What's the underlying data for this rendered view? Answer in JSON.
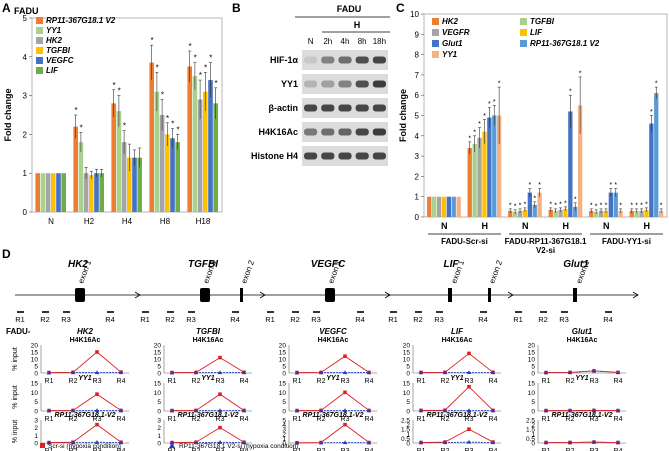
{
  "colors": {
    "orange": "#ED7D31",
    "green": "#A9D18E",
    "gray": "#A5A5A5",
    "gold": "#FFC000",
    "blue": "#4472C4",
    "lightblue": "#5B9BD5",
    "lightgreen": "#70AD47",
    "peach": "#F4B183",
    "red": "#E02020",
    "triblue": "#1F3FBF"
  },
  "panel_labels": {
    "a": "A",
    "b": "B",
    "c": "C",
    "d": "D"
  },
  "chart_data": [
    {
      "id": "panelA",
      "type": "bar",
      "title": "FADU",
      "ylabel": "Fold change",
      "ylim": [
        0,
        5
      ],
      "yticks": [
        "0",
        "1",
        "2",
        "3",
        "4",
        "5"
      ],
      "categories": [
        "N",
        "H2",
        "H4",
        "H8",
        "H18"
      ],
      "series": [
        {
          "name": "RP11-367G18.1 V2",
          "color": "#ED7D31",
          "values": [
            1,
            2.2,
            2.8,
            3.85,
            3.75
          ],
          "err": [
            0,
            0.3,
            0.35,
            0.45,
            0.4
          ],
          "sig": [
            false,
            true,
            true,
            true,
            true
          ]
        },
        {
          "name": "YY1",
          "color": "#A9D18E",
          "values": [
            1,
            1.8,
            2.6,
            3.1,
            3.5
          ],
          "err": [
            0,
            0.25,
            0.4,
            0.5,
            0.35
          ],
          "sig": [
            false,
            true,
            true,
            true,
            true
          ]
        },
        {
          "name": "HK2",
          "color": "#A5A5A5",
          "values": [
            1,
            1.0,
            1.8,
            2.5,
            2.9
          ],
          "err": [
            0,
            0.15,
            0.3,
            0.4,
            0.5
          ],
          "sig": [
            false,
            false,
            true,
            true,
            true
          ]
        },
        {
          "name": "TGFBI",
          "color": "#FFC000",
          "values": [
            1,
            0.95,
            1.4,
            2.0,
            3.1
          ],
          "err": [
            0,
            0.1,
            0.35,
            0.3,
            0.5
          ],
          "sig": [
            false,
            false,
            false,
            true,
            true
          ]
        },
        {
          "name": "VEGFC",
          "color": "#4472C4",
          "values": [
            1,
            1.0,
            1.4,
            1.9,
            3.4
          ],
          "err": [
            0,
            0.1,
            0.2,
            0.25,
            0.45
          ],
          "sig": [
            false,
            false,
            false,
            true,
            true
          ]
        },
        {
          "name": "LIF",
          "color": "#70AD47",
          "values": [
            1,
            1.0,
            1.4,
            1.8,
            2.8
          ],
          "err": [
            0,
            0.1,
            0.25,
            0.2,
            0.4
          ],
          "sig": [
            false,
            false,
            false,
            true,
            true
          ]
        }
      ]
    },
    {
      "id": "panelC",
      "type": "bar",
      "ylabel": "Fold change",
      "ylim": [
        0,
        10
      ],
      "yticks": [
        "0",
        "1",
        "2",
        "3",
        "4",
        "5",
        "6",
        "7",
        "8",
        "9",
        "10"
      ],
      "categories": [
        "N",
        "H",
        "N",
        "H",
        "N",
        "H"
      ],
      "group_labels": [
        "FADU-Scr-si",
        "FADU-RP11-367G18.1 V2-si",
        "FADU-YY1-si"
      ],
      "series": [
        {
          "name": "HK2",
          "color": "#ED7D31",
          "values": [
            1,
            3.4,
            0.3,
            0.35,
            0.3,
            0.3
          ],
          "err": [
            0,
            0.3,
            0.1,
            0.1,
            0.1,
            0.1
          ]
        },
        {
          "name": "TGFBI",
          "color": "#A9D18E",
          "values": [
            1,
            3.6,
            0.25,
            0.3,
            0.25,
            0.3
          ],
          "err": [
            0,
            0.4,
            0.1,
            0.1,
            0.1,
            0.1
          ]
        },
        {
          "name": "VEGFR",
          "color": "#A5A5A5",
          "values": [
            1,
            3.9,
            0.3,
            0.35,
            0.3,
            0.3
          ],
          "err": [
            0,
            0.5,
            0.1,
            0.1,
            0.1,
            0.1
          ]
        },
        {
          "name": "LIF",
          "color": "#FFC000",
          "values": [
            1,
            4.2,
            0.35,
            0.4,
            0.3,
            0.35
          ],
          "err": [
            0,
            0.6,
            0.1,
            0.1,
            0.1,
            0.1
          ]
        },
        {
          "name": "Glut1",
          "color": "#4472C4",
          "values": [
            1,
            4.9,
            1.2,
            5.2,
            1.2,
            4.6
          ],
          "err": [
            0,
            0.5,
            0.2,
            0.8,
            0.2,
            0.4
          ]
        },
        {
          "name": "RP11-367G18.1 V2",
          "color": "#5B9BD5",
          "values": [
            1,
            5.0,
            0.6,
            0.5,
            1.2,
            6.1
          ],
          "err": [
            0,
            0.5,
            0.15,
            0.2,
            0.2,
            0.3
          ]
        },
        {
          "name": "YY1",
          "color": "#F4B183",
          "values": [
            1,
            5.0,
            1.2,
            5.5,
            0.3,
            0.3
          ],
          "err": [
            0,
            1.4,
            0.2,
            1.4,
            0.1,
            0.1
          ]
        }
      ]
    },
    {
      "id": "panelD",
      "type": "line",
      "xlabel_ticks": [
        "R1",
        "R2",
        "R3",
        "R4"
      ],
      "ylabel": "% input",
      "row_prefix": "FADU-",
      "series_names": [
        "Scr-si (hypoxia condition)",
        "RP11-367G18.1 V2-si (hypoxia condition)"
      ],
      "genes": [
        "HK2",
        "TGFBI",
        "VEGFC",
        "LIF",
        "Glut1"
      ],
      "rows": [
        {
          "ylim": [
            0,
            20
          ],
          "yticks": [
            "0",
            "5",
            "10",
            "15",
            "20"
          ],
          "charts": [
            {
              "gene": "HK2",
              "title": "H4K16Ac",
              "red": [
                0.3,
                0.5,
                15,
                0.6
              ],
              "blue": [
                0.2,
                0.3,
                0.3,
                0.3
              ]
            },
            {
              "gene": "TGFBI",
              "title": "H4K16Ac",
              "red": [
                0.3,
                0.4,
                11,
                0.5
              ],
              "blue": [
                0.2,
                0.3,
                0.3,
                0.3
              ]
            },
            {
              "gene": "VEGFC",
              "title": "H4K16Ac",
              "red": [
                0.3,
                0.4,
                12,
                0.4
              ],
              "blue": [
                0.2,
                0.3,
                0.3,
                0.3
              ]
            },
            {
              "gene": "LIF",
              "title": "H4K16Ac",
              "red": [
                0.4,
                0.5,
                14,
                0.5
              ],
              "blue": [
                0.3,
                0.3,
                0.4,
                0.3
              ]
            },
            {
              "gene": "Glut1",
              "title": "H4K16Ac",
              "red": [
                0.3,
                0.4,
                1.5,
                0.4
              ],
              "blue": [
                0.3,
                0.4,
                1.6,
                0.4
              ]
            }
          ]
        },
        {
          "ylim": [
            0,
            15
          ],
          "yticks": [
            "0",
            "5",
            "10",
            "15"
          ],
          "charts": [
            {
              "gene": "HK2",
              "title": "YY1",
              "red": [
                0.2,
                0.3,
                9,
                0.3
              ],
              "blue": [
                0.2,
                0.2,
                0.3,
                0.2
              ]
            },
            {
              "gene": "TGFBI",
              "title": "YY1",
              "red": [
                0.2,
                0.3,
                9,
                0.3
              ],
              "blue": [
                0.2,
                0.2,
                0.3,
                0.2
              ]
            },
            {
              "gene": "VEGFC",
              "title": "YY1",
              "red": [
                0.2,
                0.3,
                10,
                0.3
              ],
              "blue": [
                0.2,
                0.2,
                0.3,
                0.2
              ]
            },
            {
              "gene": "LIF",
              "title": "YY1",
              "red": [
                0.3,
                0.4,
                13,
                0.3
              ],
              "blue": [
                0.2,
                0.2,
                0.3,
                0.2
              ]
            },
            {
              "gene": "Glut1",
              "title": "YY1",
              "red": [
                0.2,
                0.2,
                0.3,
                0.2
              ],
              "blue": [
                0.2,
                0.2,
                0.3,
                0.2
              ]
            }
          ]
        },
        {
          "ylim": [
            0,
            3
          ],
          "yticks": [
            "0",
            "1",
            "2",
            "3"
          ],
          "charts": [
            {
              "gene": "HK2",
              "title": "RP11-367G18.1-V2",
              "red": [
                0.05,
                0.1,
                2.4,
                0.1
              ],
              "blue": [
                0.05,
                0.05,
                0.1,
                0.05
              ]
            },
            {
              "gene": "TGFBI",
              "title": "RP11-367G18.1-V2",
              "red": [
                0.05,
                0.1,
                2.0,
                0.1
              ],
              "blue": [
                0.05,
                0.05,
                0.1,
                0.05
              ]
            },
            {
              "gene": "VEGFC",
              "title": "RP11-367G18.1-V2",
              "red": [
                0.05,
                0.1,
                4.0,
                0.1
              ],
              "blue": [
                0.05,
                0.05,
                0.1,
                0.05
              ]
            },
            {
              "gene": "LIF",
              "title": "RP11-367G18.1-V2",
              "red": [
                0.05,
                0.1,
                1.5,
                0.1
              ],
              "blue": [
                0.05,
                0.05,
                0.1,
                0.05
              ]
            },
            {
              "gene": "Glut1",
              "title": "RP11-367G18.1-V2",
              "red": [
                0.05,
                0.05,
                0.1,
                0.05
              ],
              "blue": [
                0.05,
                0.05,
                0.1,
                0.05
              ]
            }
          ]
        }
      ],
      "row_axis_overrides": [
        [
          null,
          null,
          null,
          null,
          null
        ],
        [
          null,
          null,
          null,
          null,
          null
        ],
        [
          null,
          null,
          {
            "ylim": [
              0,
              5
            ],
            "yticks": [
              "0",
              "1",
              "2",
              "3",
              "4",
              "5"
            ]
          },
          {
            "ylim": [
              0,
              2.5
            ],
            "yticks": [
              "0",
              "0.5",
              "1",
              "1.5",
              "2",
              "2.5"
            ]
          },
          {
            "ylim": [
              0,
              2.5
            ],
            "yticks": [
              "0",
              "0.5",
              "1",
              "1.5",
              "2",
              "2.5"
            ]
          }
        ]
      ]
    }
  ],
  "blot": {
    "title": "FADU",
    "condition": "H",
    "lanes": [
      "N",
      "2h",
      "4h",
      "8h",
      "18h"
    ],
    "rows": [
      {
        "label": "HIF-1α",
        "intensity": [
          0.15,
          0.5,
          0.6,
          0.75,
          0.8
        ]
      },
      {
        "label": "YY1",
        "intensity": [
          0.25,
          0.35,
          0.5,
          0.75,
          0.85
        ]
      },
      {
        "label": "β-actin",
        "intensity": [
          0.8,
          0.8,
          0.8,
          0.8,
          0.8
        ]
      },
      {
        "label": "H4K16Ac",
        "intensity": [
          0.55,
          0.6,
          0.65,
          0.8,
          0.85
        ]
      },
      {
        "label": "Histone H4",
        "intensity": [
          0.8,
          0.8,
          0.8,
          0.8,
          0.8
        ]
      }
    ]
  },
  "genes_diagram": [
    {
      "name": "HK2",
      "exons": [
        "exon 1"
      ],
      "regions": [
        "R1",
        "R2",
        "R3",
        "R4"
      ]
    },
    {
      "name": "TGFBI",
      "exons": [
        "exon 1",
        "exon 2"
      ],
      "regions": [
        "R1",
        "R2",
        "R3",
        "R4"
      ]
    },
    {
      "name": "VEGFC",
      "exons": [
        "exon 1"
      ],
      "regions": [
        "R1",
        "R2",
        "R3",
        "R4"
      ]
    },
    {
      "name": "LIF",
      "exons": [
        "exon 1",
        "exon 2"
      ],
      "regions": [
        "R1",
        "R2",
        "R3",
        "R4"
      ]
    },
    {
      "name": "Glut1",
      "exons": [
        "exon 1"
      ],
      "regions": [
        "R1",
        "R2",
        "R3",
        "R4"
      ]
    }
  ]
}
